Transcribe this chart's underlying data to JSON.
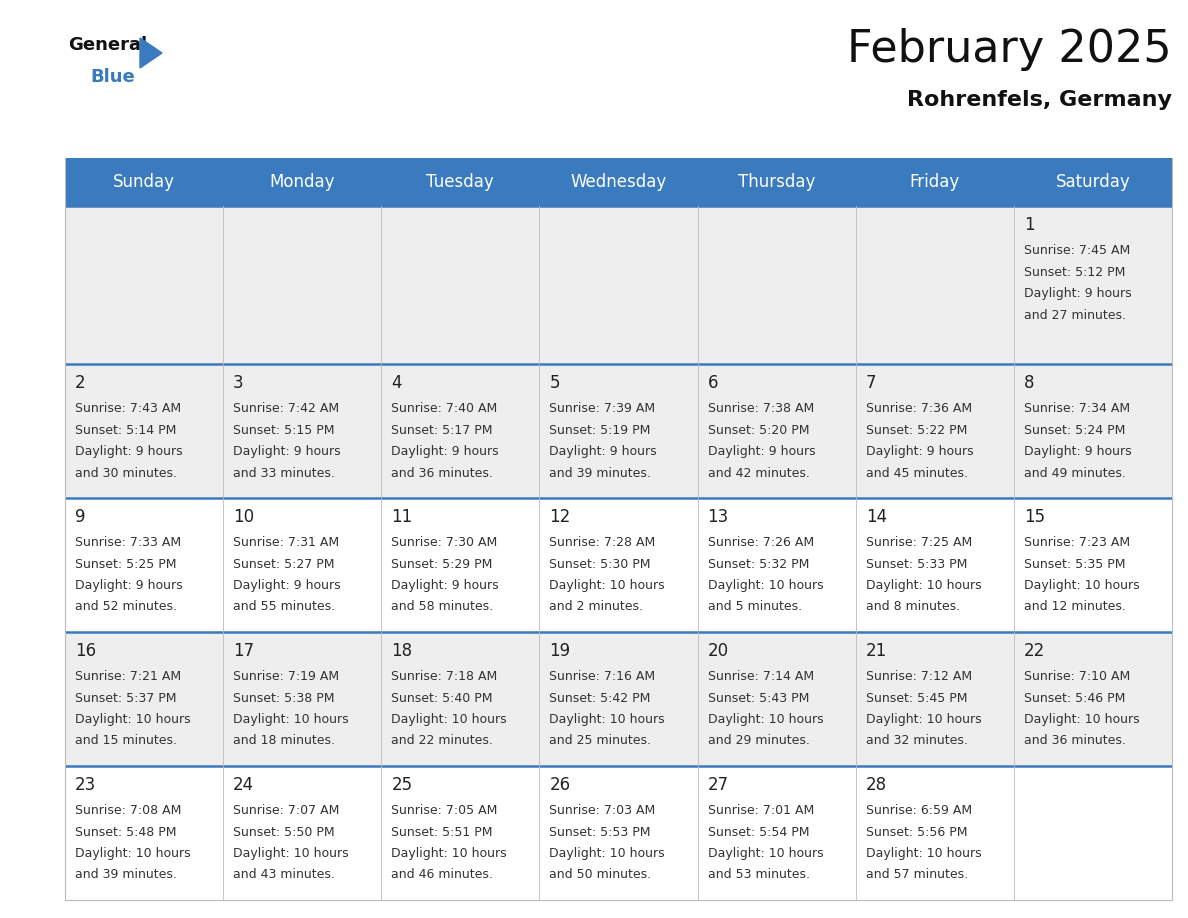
{
  "title": "February 2025",
  "subtitle": "Rohrenfels, Germany",
  "header_color": "#3a7abf",
  "header_text_color": "#ffffff",
  "bg_color": "#ffffff",
  "cell_bg_row0": "#eeeeee",
  "cell_bg_row1": "#eeeeee",
  "cell_bg_row2": "#ffffff",
  "cell_bg_row3": "#eeeeee",
  "cell_bg_row4": "#ffffff",
  "cell_bg_row5": "#eeeeee",
  "border_color": "#3a7abf",
  "day_names": [
    "Sunday",
    "Monday",
    "Tuesday",
    "Wednesday",
    "Thursday",
    "Friday",
    "Saturday"
  ],
  "title_fontsize": 32,
  "subtitle_fontsize": 16,
  "header_fontsize": 12,
  "day_num_fontsize": 12,
  "info_fontsize": 9,
  "days": [
    {
      "day": 1,
      "col": 6,
      "row": 0,
      "sunrise": "7:45 AM",
      "sunset": "5:12 PM",
      "daylight_line1": "Daylight: 9 hours",
      "daylight_line2": "and 27 minutes."
    },
    {
      "day": 2,
      "col": 0,
      "row": 1,
      "sunrise": "7:43 AM",
      "sunset": "5:14 PM",
      "daylight_line1": "Daylight: 9 hours",
      "daylight_line2": "and 30 minutes."
    },
    {
      "day": 3,
      "col": 1,
      "row": 1,
      "sunrise": "7:42 AM",
      "sunset": "5:15 PM",
      "daylight_line1": "Daylight: 9 hours",
      "daylight_line2": "and 33 minutes."
    },
    {
      "day": 4,
      "col": 2,
      "row": 1,
      "sunrise": "7:40 AM",
      "sunset": "5:17 PM",
      "daylight_line1": "Daylight: 9 hours",
      "daylight_line2": "and 36 minutes."
    },
    {
      "day": 5,
      "col": 3,
      "row": 1,
      "sunrise": "7:39 AM",
      "sunset": "5:19 PM",
      "daylight_line1": "Daylight: 9 hours",
      "daylight_line2": "and 39 minutes."
    },
    {
      "day": 6,
      "col": 4,
      "row": 1,
      "sunrise": "7:38 AM",
      "sunset": "5:20 PM",
      "daylight_line1": "Daylight: 9 hours",
      "daylight_line2": "and 42 minutes."
    },
    {
      "day": 7,
      "col": 5,
      "row": 1,
      "sunrise": "7:36 AM",
      "sunset": "5:22 PM",
      "daylight_line1": "Daylight: 9 hours",
      "daylight_line2": "and 45 minutes."
    },
    {
      "day": 8,
      "col": 6,
      "row": 1,
      "sunrise": "7:34 AM",
      "sunset": "5:24 PM",
      "daylight_line1": "Daylight: 9 hours",
      "daylight_line2": "and 49 minutes."
    },
    {
      "day": 9,
      "col": 0,
      "row": 2,
      "sunrise": "7:33 AM",
      "sunset": "5:25 PM",
      "daylight_line1": "Daylight: 9 hours",
      "daylight_line2": "and 52 minutes."
    },
    {
      "day": 10,
      "col": 1,
      "row": 2,
      "sunrise": "7:31 AM",
      "sunset": "5:27 PM",
      "daylight_line1": "Daylight: 9 hours",
      "daylight_line2": "and 55 minutes."
    },
    {
      "day": 11,
      "col": 2,
      "row": 2,
      "sunrise": "7:30 AM",
      "sunset": "5:29 PM",
      "daylight_line1": "Daylight: 9 hours",
      "daylight_line2": "and 58 minutes."
    },
    {
      "day": 12,
      "col": 3,
      "row": 2,
      "sunrise": "7:28 AM",
      "sunset": "5:30 PM",
      "daylight_line1": "Daylight: 10 hours",
      "daylight_line2": "and 2 minutes."
    },
    {
      "day": 13,
      "col": 4,
      "row": 2,
      "sunrise": "7:26 AM",
      "sunset": "5:32 PM",
      "daylight_line1": "Daylight: 10 hours",
      "daylight_line2": "and 5 minutes."
    },
    {
      "day": 14,
      "col": 5,
      "row": 2,
      "sunrise": "7:25 AM",
      "sunset": "5:33 PM",
      "daylight_line1": "Daylight: 10 hours",
      "daylight_line2": "and 8 minutes."
    },
    {
      "day": 15,
      "col": 6,
      "row": 2,
      "sunrise": "7:23 AM",
      "sunset": "5:35 PM",
      "daylight_line1": "Daylight: 10 hours",
      "daylight_line2": "and 12 minutes."
    },
    {
      "day": 16,
      "col": 0,
      "row": 3,
      "sunrise": "7:21 AM",
      "sunset": "5:37 PM",
      "daylight_line1": "Daylight: 10 hours",
      "daylight_line2": "and 15 minutes."
    },
    {
      "day": 17,
      "col": 1,
      "row": 3,
      "sunrise": "7:19 AM",
      "sunset": "5:38 PM",
      "daylight_line1": "Daylight: 10 hours",
      "daylight_line2": "and 18 minutes."
    },
    {
      "day": 18,
      "col": 2,
      "row": 3,
      "sunrise": "7:18 AM",
      "sunset": "5:40 PM",
      "daylight_line1": "Daylight: 10 hours",
      "daylight_line2": "and 22 minutes."
    },
    {
      "day": 19,
      "col": 3,
      "row": 3,
      "sunrise": "7:16 AM",
      "sunset": "5:42 PM",
      "daylight_line1": "Daylight: 10 hours",
      "daylight_line2": "and 25 minutes."
    },
    {
      "day": 20,
      "col": 4,
      "row": 3,
      "sunrise": "7:14 AM",
      "sunset": "5:43 PM",
      "daylight_line1": "Daylight: 10 hours",
      "daylight_line2": "and 29 minutes."
    },
    {
      "day": 21,
      "col": 5,
      "row": 3,
      "sunrise": "7:12 AM",
      "sunset": "5:45 PM",
      "daylight_line1": "Daylight: 10 hours",
      "daylight_line2": "and 32 minutes."
    },
    {
      "day": 22,
      "col": 6,
      "row": 3,
      "sunrise": "7:10 AM",
      "sunset": "5:46 PM",
      "daylight_line1": "Daylight: 10 hours",
      "daylight_line2": "and 36 minutes."
    },
    {
      "day": 23,
      "col": 0,
      "row": 4,
      "sunrise": "7:08 AM",
      "sunset": "5:48 PM",
      "daylight_line1": "Daylight: 10 hours",
      "daylight_line2": "and 39 minutes."
    },
    {
      "day": 24,
      "col": 1,
      "row": 4,
      "sunrise": "7:07 AM",
      "sunset": "5:50 PM",
      "daylight_line1": "Daylight: 10 hours",
      "daylight_line2": "and 43 minutes."
    },
    {
      "day": 25,
      "col": 2,
      "row": 4,
      "sunrise": "7:05 AM",
      "sunset": "5:51 PM",
      "daylight_line1": "Daylight: 10 hours",
      "daylight_line2": "and 46 minutes."
    },
    {
      "day": 26,
      "col": 3,
      "row": 4,
      "sunrise": "7:03 AM",
      "sunset": "5:53 PM",
      "daylight_line1": "Daylight: 10 hours",
      "daylight_line2": "and 50 minutes."
    },
    {
      "day": 27,
      "col": 4,
      "row": 4,
      "sunrise": "7:01 AM",
      "sunset": "5:54 PM",
      "daylight_line1": "Daylight: 10 hours",
      "daylight_line2": "and 53 minutes."
    },
    {
      "day": 28,
      "col": 5,
      "row": 4,
      "sunrise": "6:59 AM",
      "sunset": "5:56 PM",
      "daylight_line1": "Daylight: 10 hours",
      "daylight_line2": "and 57 minutes."
    }
  ]
}
